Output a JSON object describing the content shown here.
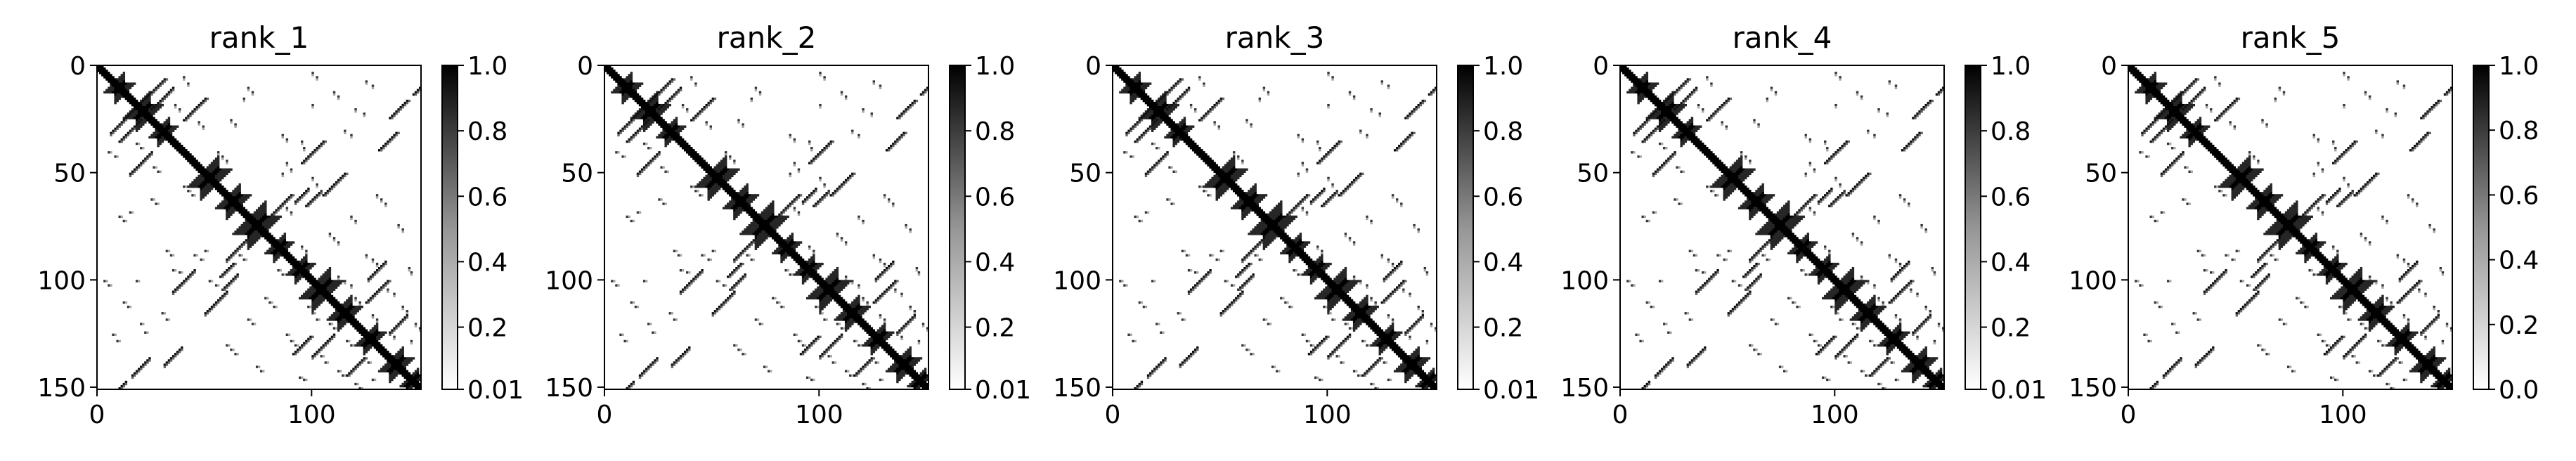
{
  "chart_data": [
    {
      "type": "heatmap",
      "title": "rank_1",
      "x_ticks": [
        "0",
        "100"
      ],
      "y_ticks": [
        "0",
        "50",
        "100",
        "150"
      ],
      "xlim": [
        0,
        151
      ],
      "ylim": [
        151,
        0
      ],
      "colorbar": {
        "cmap": "Greys",
        "range": [
          0.01,
          1.0
        ],
        "ticks": [
          "1.0",
          "0.8",
          "0.6",
          "0.4",
          "0.2",
          "0.01"
        ]
      }
    },
    {
      "type": "heatmap",
      "title": "rank_2",
      "x_ticks": [
        "0",
        "100"
      ],
      "y_ticks": [
        "0",
        "50",
        "100",
        "150"
      ],
      "xlim": [
        0,
        151
      ],
      "ylim": [
        151,
        0
      ],
      "colorbar": {
        "cmap": "Greys",
        "range": [
          0.01,
          1.0
        ],
        "ticks": [
          "1.0",
          "0.8",
          "0.6",
          "0.4",
          "0.2",
          "0.01"
        ]
      }
    },
    {
      "type": "heatmap",
      "title": "rank_3",
      "x_ticks": [
        "0",
        "100"
      ],
      "y_ticks": [
        "0",
        "50",
        "100",
        "150"
      ],
      "xlim": [
        0,
        151
      ],
      "ylim": [
        151,
        0
      ],
      "colorbar": {
        "cmap": "Greys",
        "range": [
          0.01,
          1.0
        ],
        "ticks": [
          "1.0",
          "0.8",
          "0.6",
          "0.4",
          "0.2",
          "0.01"
        ]
      }
    },
    {
      "type": "heatmap",
      "title": "rank_4",
      "x_ticks": [
        "0",
        "100"
      ],
      "y_ticks": [
        "0",
        "50",
        "100",
        "150"
      ],
      "xlim": [
        0,
        151
      ],
      "ylim": [
        151,
        0
      ],
      "colorbar": {
        "cmap": "Greys",
        "range": [
          0.01,
          1.0
        ],
        "ticks": [
          "1.0",
          "0.8",
          "0.6",
          "0.4",
          "0.2",
          "0.01"
        ]
      }
    },
    {
      "type": "heatmap",
      "title": "rank_5",
      "x_ticks": [
        "0",
        "100"
      ],
      "y_ticks": [
        "0",
        "50",
        "100",
        "150"
      ],
      "xlim": [
        0,
        151
      ],
      "ylim": [
        151,
        0
      ],
      "colorbar": {
        "cmap": "Greys",
        "range": [
          0.0,
          1.0
        ],
        "ticks": [
          "1.0",
          "0.8",
          "0.6",
          "0.4",
          "0.2",
          "0.0"
        ]
      }
    }
  ],
  "contact_map": {
    "size": 151,
    "diagonal_band": 2,
    "helix_blocks": [
      [
        8,
        12,
        5
      ],
      [
        18,
        24,
        6
      ],
      [
        28,
        33,
        4
      ],
      [
        48,
        56,
        6
      ],
      [
        60,
        66,
        5
      ],
      [
        70,
        78,
        7
      ],
      [
        82,
        87,
        4
      ],
      [
        92,
        97,
        4
      ],
      [
        100,
        108,
        6
      ],
      [
        112,
        118,
        5
      ],
      [
        124,
        130,
        4
      ],
      [
        136,
        142,
        5
      ],
      [
        144,
        149,
        3
      ]
    ],
    "antidiagonal_contacts": [
      [
        25,
        12,
        6
      ],
      [
        15,
        30,
        5
      ],
      [
        45,
        20,
        5
      ],
      [
        100,
        40,
        5
      ],
      [
        110,
        55,
        5
      ],
      [
        140,
        20,
        4
      ],
      [
        135,
        35,
        4
      ],
      [
        150,
        10,
        3
      ],
      [
        85,
        65,
        5
      ],
      [
        130,
        105,
        5
      ],
      [
        120,
        140,
        4
      ],
      [
        95,
        130,
        4
      ],
      [
        60,
        95,
        3
      ],
      [
        100,
        62,
        3
      ]
    ],
    "sparse_contacts": [
      [
        5,
        40
      ],
      [
        8,
        42
      ],
      [
        12,
        110
      ],
      [
        14,
        112
      ],
      [
        20,
        120
      ],
      [
        22,
        124
      ],
      [
        30,
        115
      ],
      [
        32,
        118
      ],
      [
        35,
        95
      ],
      [
        38,
        96
      ],
      [
        40,
        56
      ],
      [
        42,
        58
      ],
      [
        44,
        60
      ],
      [
        45,
        88
      ],
      [
        48,
        90
      ],
      [
        50,
        86
      ],
      [
        52,
        100
      ],
      [
        55,
        102
      ],
      [
        58,
        104
      ],
      [
        60,
        130
      ],
      [
        62,
        132
      ],
      [
        64,
        134
      ],
      [
        66,
        88
      ],
      [
        68,
        90
      ],
      [
        70,
        118
      ],
      [
        72,
        120
      ],
      [
        74,
        140
      ],
      [
        76,
        142
      ],
      [
        78,
        108
      ],
      [
        80,
        110
      ],
      [
        82,
        112
      ],
      [
        84,
        95
      ],
      [
        86,
        97
      ],
      [
        88,
        125
      ],
      [
        90,
        128
      ],
      [
        92,
        130
      ],
      [
        94,
        145
      ],
      [
        96,
        146
      ],
      [
        98,
        112
      ],
      [
        100,
        115
      ],
      [
        102,
        118
      ],
      [
        104,
        135
      ],
      [
        106,
        138
      ],
      [
        108,
        120
      ],
      [
        110,
        122
      ],
      [
        112,
        142
      ],
      [
        114,
        144
      ],
      [
        116,
        128
      ],
      [
        118,
        130
      ],
      [
        120,
        148
      ],
      [
        122,
        150
      ],
      [
        124,
        136
      ],
      [
        126,
        138
      ],
      [
        128,
        146
      ],
      [
        10,
        70
      ],
      [
        12,
        72
      ],
      [
        15,
        68
      ],
      [
        18,
        100
      ],
      [
        25,
        62
      ],
      [
        27,
        64
      ],
      [
        3,
        100
      ],
      [
        5,
        102
      ],
      [
        7,
        125
      ],
      [
        9,
        128
      ],
      [
        18,
        36
      ],
      [
        20,
        38
      ],
      [
        26,
        47
      ],
      [
        28,
        49
      ],
      [
        32,
        86
      ],
      [
        34,
        88
      ]
    ]
  }
}
